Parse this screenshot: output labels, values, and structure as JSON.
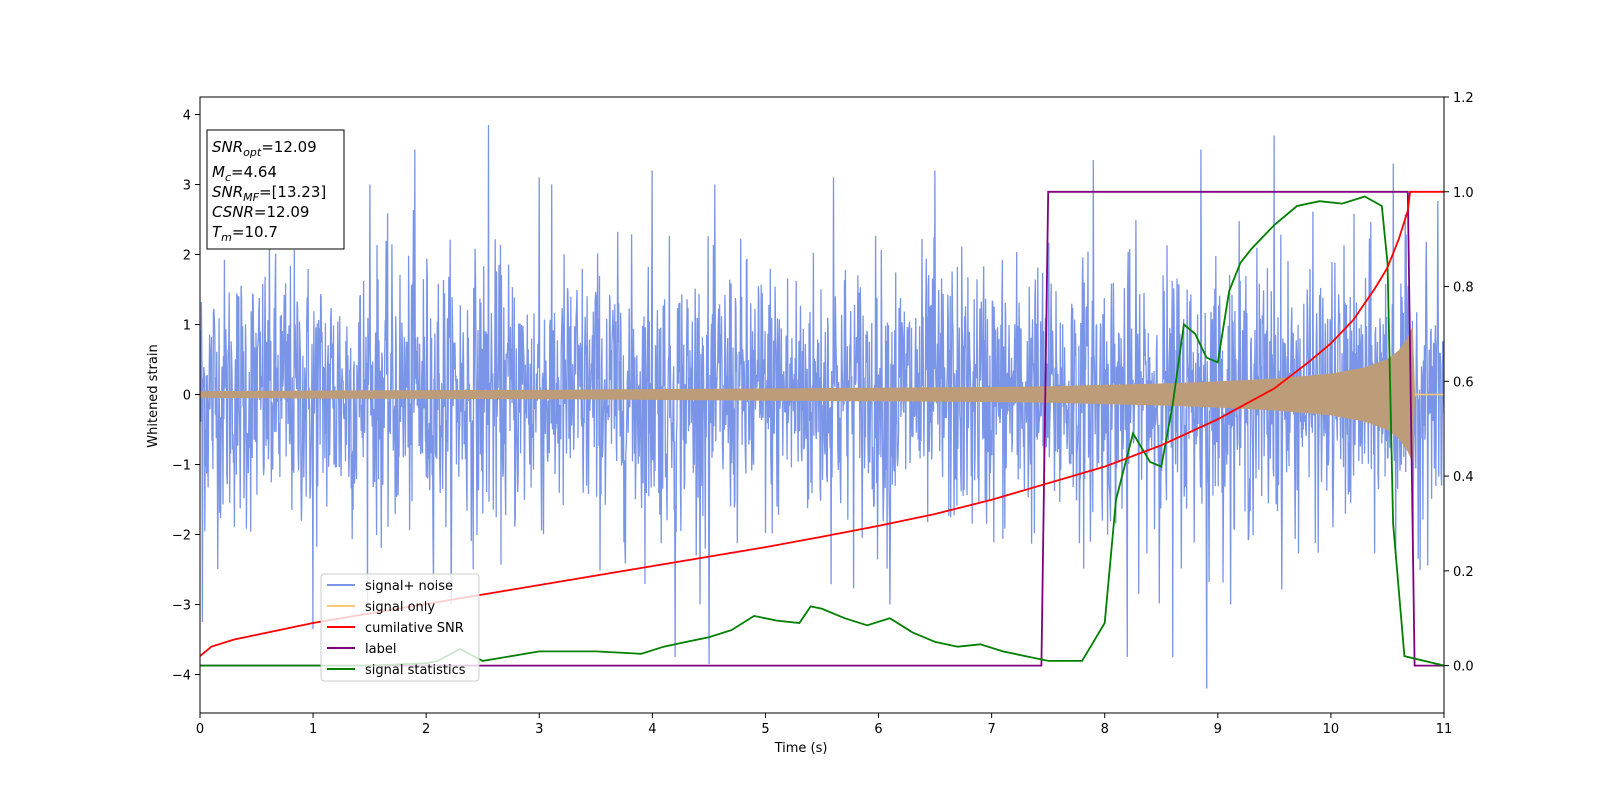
{
  "chart_data": {
    "type": "line",
    "title": "",
    "xlabel": "Time (s)",
    "ylabel": "Whitened strain",
    "ylabel_right": "",
    "xlim": [
      0,
      11
    ],
    "ylim": [
      -4.55,
      4.25
    ],
    "ylim_right": [
      -0.1,
      1.2
    ],
    "xticks": [
      "0",
      "1",
      "2",
      "3",
      "4",
      "5",
      "6",
      "7",
      "8",
      "9",
      "10",
      "11"
    ],
    "yticks": [
      "4",
      "3",
      "2",
      "1",
      "0",
      "−1",
      "−2",
      "−3",
      "−4"
    ],
    "yticks_right": [
      "1.2",
      "1.0",
      "0.8",
      "0.6",
      "0.4",
      "0.2",
      "0.0"
    ],
    "grid": false,
    "legend_location": "lower-left",
    "colors": {
      "signal_noise": "#7a95e8",
      "signal_only": "#ffc878",
      "overlap": "#bd9c7a",
      "cumulative_snr": "#ff0000",
      "label": "#800080",
      "signal_statistics": "#008000"
    },
    "annotation": {
      "lines": [
        {
          "name": "SNR",
          "sub": "opt",
          "value": "=12.09"
        },
        {
          "name": "M",
          "sub": "c",
          "value": "=4.64"
        },
        {
          "name": "SNR",
          "sub": "MF",
          "value": "=[13.23]"
        },
        {
          "name": "CSNR",
          "sub": "",
          "value": "=12.09"
        },
        {
          "name": "T",
          "sub": "m",
          "value": "=10.7"
        }
      ]
    },
    "series": [
      {
        "name": "signal+ noise",
        "axis": "left",
        "description_range": [
          -4.2,
          3.9
        ],
        "points_note": "whitened noisy strain, approx. Gaussian noise sigma ~1 across 0-11 s",
        "spikes": [
          [
            0.02,
            -3.25
          ],
          [
            1.0,
            -3.35
          ],
          [
            1.5,
            3.0
          ],
          [
            1.9,
            3.5
          ],
          [
            2.55,
            3.85
          ],
          [
            3.0,
            3.1
          ],
          [
            4.0,
            3.2
          ],
          [
            4.2,
            -3.75
          ],
          [
            4.5,
            -3.85
          ],
          [
            5.6,
            3.1
          ],
          [
            6.1,
            -3.0
          ],
          [
            6.5,
            3.2
          ],
          [
            7.9,
            3.35
          ],
          [
            8.2,
            -3.75
          ],
          [
            8.6,
            -3.75
          ],
          [
            8.85,
            3.5
          ],
          [
            8.9,
            -4.2
          ],
          [
            9.5,
            3.7
          ],
          [
            10.55,
            3.3
          ]
        ]
      },
      {
        "name": "signal only",
        "axis": "left",
        "envelope": [
          [
            0,
            0.04
          ],
          [
            1,
            0.05
          ],
          [
            2,
            0.055
          ],
          [
            3,
            0.06
          ],
          [
            4,
            0.07
          ],
          [
            5,
            0.08
          ],
          [
            6,
            0.09
          ],
          [
            7,
            0.1
          ],
          [
            7.5,
            0.11
          ],
          [
            8,
            0.13
          ],
          [
            8.5,
            0.15
          ],
          [
            9,
            0.18
          ],
          [
            9.5,
            0.22
          ],
          [
            10,
            0.29
          ],
          [
            10.3,
            0.38
          ],
          [
            10.5,
            0.5
          ],
          [
            10.6,
            0.62
          ],
          [
            10.68,
            0.8
          ],
          [
            10.72,
            0.95
          ],
          [
            10.74,
            0.0
          ],
          [
            11,
            0.0
          ]
        ]
      },
      {
        "name": "cumilative SNR",
        "axis": "right",
        "x": [
          0,
          0.1,
          0.3,
          0.5,
          1,
          1.5,
          2,
          2.5,
          3,
          3.5,
          4,
          4.5,
          5,
          5.5,
          6,
          6.5,
          7,
          7.5,
          8,
          8.5,
          9,
          9.5,
          9.8,
          10,
          10.2,
          10.4,
          10.5,
          10.6,
          10.68,
          10.7,
          10.72,
          11
        ],
        "values": [
          0.02,
          0.04,
          0.055,
          0.065,
          0.09,
          0.11,
          0.13,
          0.15,
          0.17,
          0.19,
          0.21,
          0.23,
          0.25,
          0.272,
          0.295,
          0.32,
          0.35,
          0.385,
          0.42,
          0.465,
          0.52,
          0.585,
          0.64,
          0.68,
          0.73,
          0.8,
          0.84,
          0.9,
          0.96,
          1.0,
          1.0,
          1.0
        ]
      },
      {
        "name": "label",
        "axis": "right",
        "x": [
          0,
          7.44,
          7.5,
          10.68,
          10.74,
          11
        ],
        "values": [
          0,
          0,
          1,
          1,
          0,
          0
        ]
      },
      {
        "name": "signal statistics",
        "axis": "right",
        "x": [
          0,
          1.5,
          2,
          2.1,
          2.3,
          2.5,
          3,
          3.5,
          3.9,
          4.1,
          4.3,
          4.5,
          4.7,
          4.9,
          5.1,
          5.3,
          5.4,
          5.5,
          5.7,
          5.9,
          6.1,
          6.3,
          6.5,
          6.7,
          6.9,
          7.1,
          7.5,
          7.8,
          8.0,
          8.1,
          8.25,
          8.4,
          8.5,
          8.6,
          8.7,
          8.8,
          8.9,
          9.0,
          9.1,
          9.2,
          9.3,
          9.5,
          9.7,
          9.9,
          10.1,
          10.3,
          10.45,
          10.5,
          10.55,
          10.65,
          11
        ],
        "values": [
          0,
          0,
          0.005,
          0.01,
          0.035,
          0.01,
          0.03,
          0.03,
          0.025,
          0.04,
          0.05,
          0.06,
          0.075,
          0.105,
          0.095,
          0.09,
          0.125,
          0.12,
          0.1,
          0.085,
          0.1,
          0.07,
          0.05,
          0.04,
          0.045,
          0.03,
          0.01,
          0.01,
          0.09,
          0.35,
          0.49,
          0.43,
          0.42,
          0.55,
          0.72,
          0.7,
          0.65,
          0.64,
          0.79,
          0.85,
          0.88,
          0.93,
          0.97,
          0.98,
          0.975,
          0.99,
          0.97,
          0.85,
          0.3,
          0.02,
          0.0
        ]
      }
    ]
  }
}
